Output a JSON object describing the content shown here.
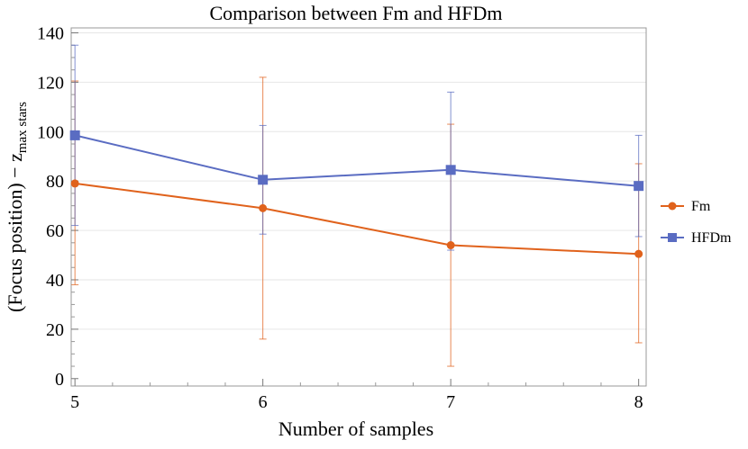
{
  "chart_data": {
    "type": "line",
    "title": "Comparison between Fm and HFDm",
    "xlabel": "Number of samples",
    "ylabel_main": "(Focus position) − z",
    "ylabel_sub": "max stars",
    "x": [
      5,
      6,
      7,
      8
    ],
    "xlim": [
      4.98,
      8.04
    ],
    "ylim": [
      -3,
      142
    ],
    "y_ticks": [
      0,
      20,
      40,
      60,
      80,
      100,
      120,
      140
    ],
    "x_ticks": [
      5,
      6,
      7,
      8
    ],
    "grid": "horizontal-light",
    "legend_position": "right",
    "series": [
      {
        "name": "Fm",
        "color": "#E0621C",
        "marker": "circle",
        "values": [
          79,
          69,
          54,
          50.5
        ],
        "err_low": [
          38,
          16,
          5,
          14.5
        ],
        "err_high": [
          120.5,
          122,
          103,
          87
        ]
      },
      {
        "name": "HFDm",
        "color": "#5A6CC2",
        "marker": "square",
        "values": [
          98.5,
          80.5,
          84.5,
          78
        ],
        "err_low": [
          62,
          58.5,
          52,
          57.5
        ],
        "err_high": [
          135,
          102.5,
          116,
          98.5
        ]
      }
    ]
  }
}
